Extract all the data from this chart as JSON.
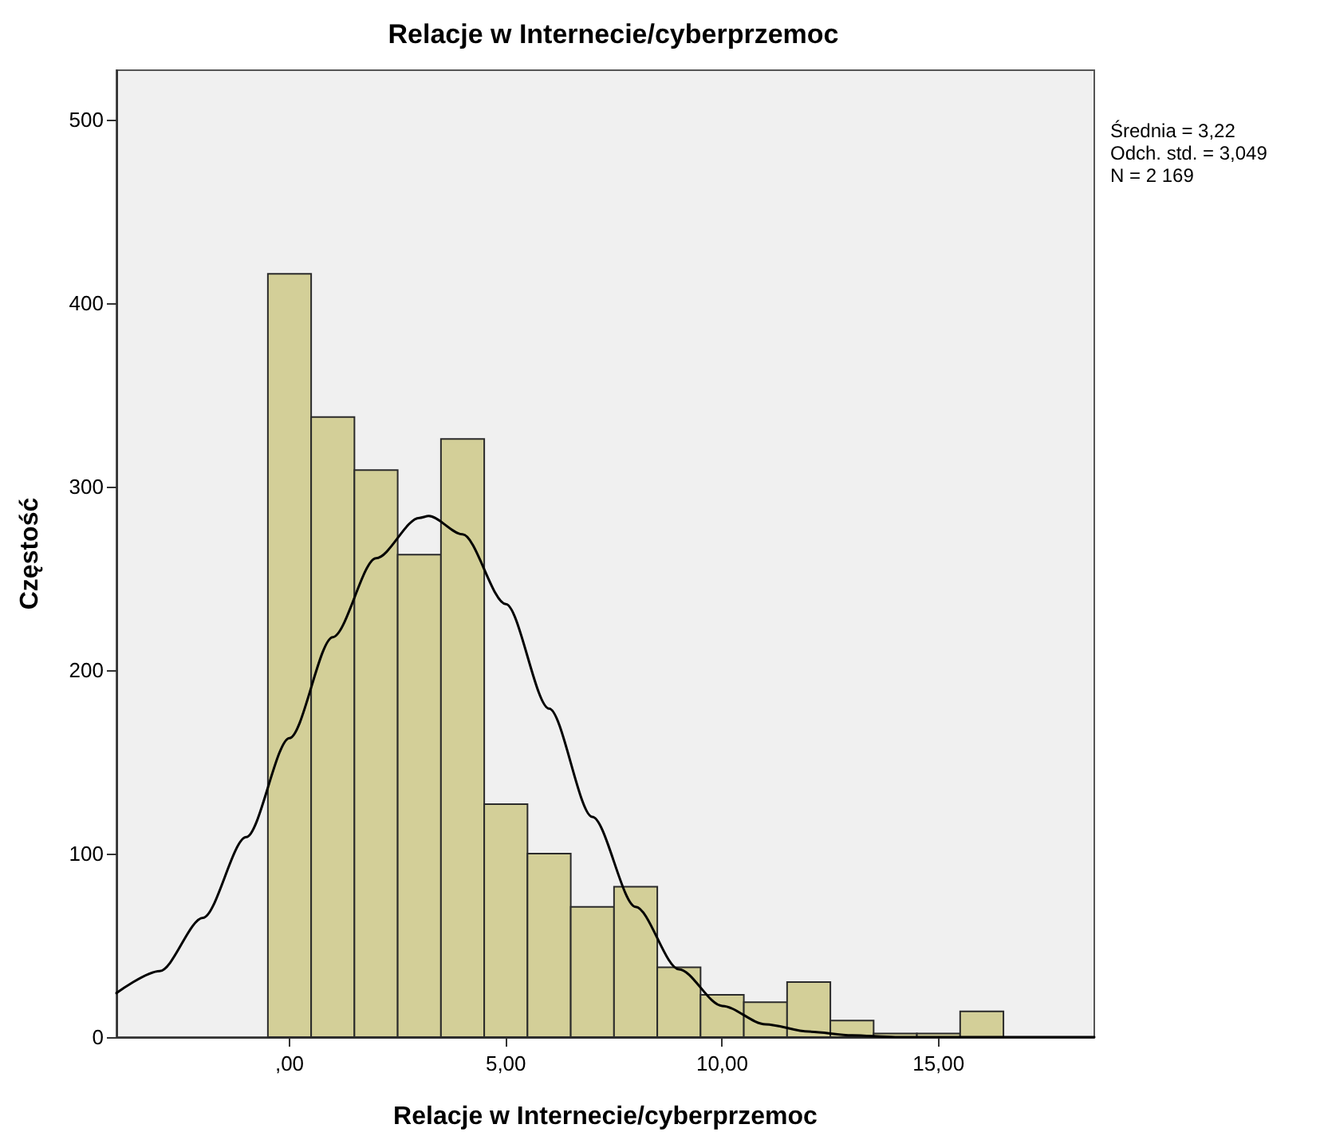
{
  "chart_data": {
    "type": "histogram",
    "title": "Relacje w Internecie/cyberprzemoc",
    "xlabel": "Relacje w Internecie/cyberprzemoc",
    "ylabel": "Częstość",
    "bins": [
      -0.5,
      0.5,
      1.5,
      2.5,
      3.5,
      4.5,
      5.5,
      6.5,
      7.5,
      8.5,
      9.5,
      10.5,
      11.5,
      12.5,
      13.5,
      14.5,
      15.5,
      16.5
    ],
    "values": [
      416,
      338,
      309,
      263,
      326,
      127,
      100,
      71,
      82,
      38,
      23,
      19,
      30,
      9,
      2,
      2,
      14
    ],
    "color": "#d3cf98",
    "series": [
      {
        "type": "line",
        "color": "#000000",
        "x": [
          -4,
          -3,
          -2,
          -1,
          0,
          1,
          2,
          3,
          3.22,
          4,
          5,
          6,
          7,
          8,
          9,
          10,
          11,
          12,
          13,
          14,
          16,
          18.6
        ],
        "values": [
          24,
          36,
          65,
          109,
          163,
          218,
          261,
          283,
          284,
          274,
          236,
          179,
          120,
          71,
          37,
          17,
          7,
          3,
          1,
          0,
          0,
          0
        ]
      }
    ],
    "xlim": [
      -4,
      18.6
    ],
    "xticks": [
      {
        "value": 0,
        "label": ",00"
      },
      {
        "value": 5,
        "label": "5,00"
      },
      {
        "value": 10,
        "label": "10,00"
      },
      {
        "value": 15,
        "label": "15,00"
      }
    ],
    "ylim": [
      0,
      527
    ],
    "yticks": [
      0,
      100,
      200,
      300,
      400,
      500
    ],
    "marker": "none",
    "line_style": "solid",
    "annotations": [
      "Średnia = 3,22",
      "Odch. std. = 3,049",
      "N = 2 169"
    ]
  }
}
